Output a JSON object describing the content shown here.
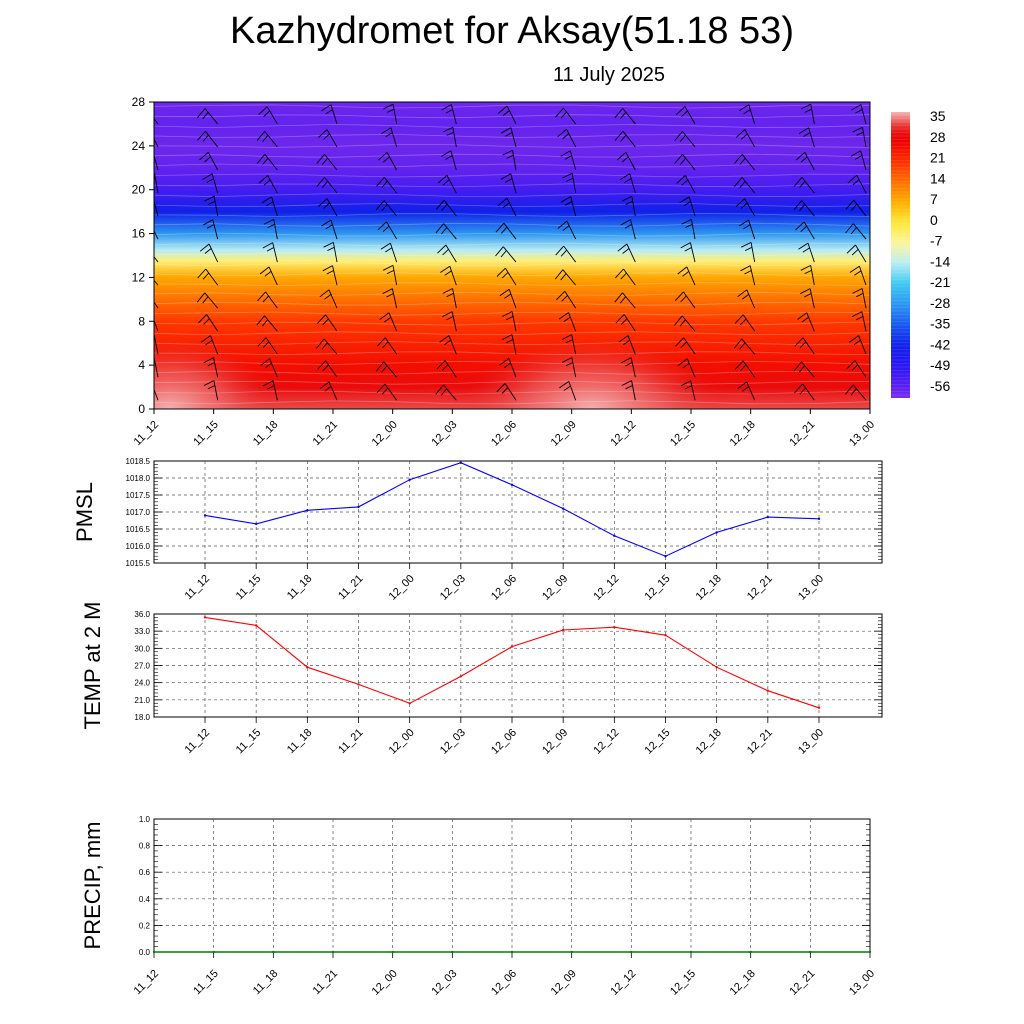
{
  "header": {
    "title": "Kazhydromet for Aksay(51.18 53)",
    "subtitle": "11 July 2025"
  },
  "colors": {
    "pressure_line": "#0000ff",
    "temperature_line": "#ff0000",
    "precip_line": "#008000",
    "grid": "#555555",
    "wind_barb": "#000000"
  },
  "chart_data": [
    {
      "id": "temperature-cross-section",
      "type": "heatmap",
      "x_categories": [
        "11_12",
        "11_15",
        "11_18",
        "11_21",
        "12_00",
        "12_03",
        "12_06",
        "12_09",
        "12_12",
        "12_15",
        "12_18",
        "12_21",
        "13_00"
      ],
      "y_ticks": [
        0,
        4,
        8,
        12,
        16,
        20,
        24,
        28
      ],
      "ylim": [
        0,
        28
      ],
      "colorbar": {
        "labels": [
          "35",
          "28",
          "21",
          "14",
          "7",
          "0",
          "-7",
          "-14",
          "-21",
          "-28",
          "-35",
          "-42",
          "-49",
          "-56"
        ],
        "range": [
          -60,
          38
        ]
      },
      "profile": {
        "heights": [
          0,
          2,
          4,
          6,
          8,
          10,
          12,
          13.5,
          14.5,
          16,
          18,
          20,
          22,
          24,
          26,
          28
        ],
        "temps": [
          34,
          30,
          26,
          23,
          20,
          14,
          8,
          -4,
          -14,
          -28,
          -42,
          -53,
          -57,
          -58,
          -57,
          -58
        ]
      },
      "surface_warm_cores": [
        {
          "x_category": "11_12",
          "temp": 36
        },
        {
          "x_category": "12_09",
          "temp": 34
        }
      ],
      "wind_barbs": true
    },
    {
      "id": "pmsl",
      "type": "line",
      "ylabel": "PMSL",
      "x": [
        "11_12",
        "11_15",
        "11_18",
        "11_21",
        "12_00",
        "12_03",
        "12_06",
        "12_09",
        "12_12",
        "12_15",
        "12_18",
        "12_21",
        "13_00"
      ],
      "values": [
        1016.9,
        1016.65,
        1017.05,
        1017.15,
        1017.95,
        1018.45,
        1017.8,
        1017.1,
        1016.3,
        1015.7,
        1016.4,
        1016.85,
        1016.8
      ],
      "ylim": [
        1015.5,
        1018.5
      ],
      "y_ticks": [
        "1015.5",
        "1016.0",
        "1016.5",
        "1017.0",
        "1017.5",
        "1018.0",
        "1018.5"
      ],
      "grid": true
    },
    {
      "id": "temp-2m",
      "type": "line",
      "ylabel": "TEMP at 2 M",
      "x": [
        "11_12",
        "11_15",
        "11_18",
        "11_21",
        "12_00",
        "12_03",
        "12_06",
        "12_09",
        "12_12",
        "12_15",
        "12_18",
        "12_21",
        "13_00"
      ],
      "values": [
        35.4,
        34.0,
        26.7,
        23.7,
        20.4,
        25.1,
        30.3,
        33.2,
        33.7,
        32.3,
        26.7,
        22.6,
        19.6
      ],
      "ylim": [
        18.0,
        36.0
      ],
      "y_ticks": [
        "18.0",
        "21.0",
        "24.0",
        "27.0",
        "30.0",
        "33.0",
        "36.0"
      ],
      "grid": true
    },
    {
      "id": "precip",
      "type": "line",
      "ylabel": "PRECIP, mm",
      "x": [
        "11_12",
        "11_15",
        "11_18",
        "11_21",
        "12_00",
        "12_03",
        "12_06",
        "12_09",
        "12_12",
        "12_15",
        "12_18",
        "12_21",
        "13_00"
      ],
      "values": [
        0,
        0,
        0,
        0,
        0,
        0,
        0,
        0,
        0,
        0,
        0,
        0,
        0
      ],
      "ylim": [
        0.0,
        1.0
      ],
      "y_ticks": [
        "0.0",
        "0.2",
        "0.4",
        "0.6",
        "0.8",
        "1.0"
      ],
      "grid": true
    }
  ]
}
